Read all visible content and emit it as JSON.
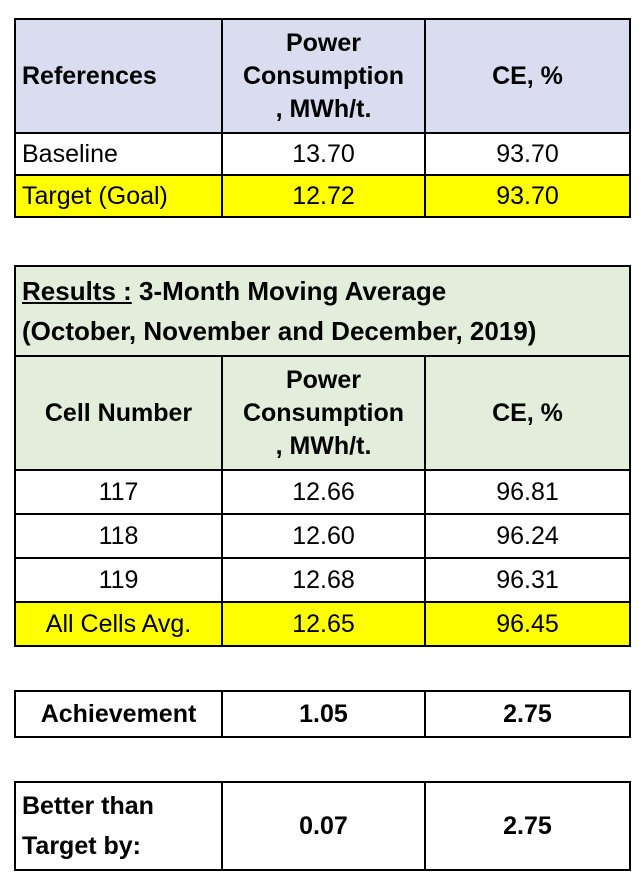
{
  "references_table": {
    "headers": [
      "References",
      "Power Consumption , MWh/t.",
      "CE, %"
    ],
    "header_power_lines": [
      "Power",
      "Consumption",
      ", MWh/t."
    ],
    "rows": [
      {
        "label": "Baseline",
        "power": "13.70",
        "ce": "93.70"
      },
      {
        "label": "Target (Goal)",
        "power": "12.72",
        "ce": "93.70"
      }
    ]
  },
  "results_table": {
    "title_prefix": "Results :",
    "title_main": " 3-Month Moving Average",
    "title_line2": "(October, November and December, 2019)",
    "headers": [
      "Cell Number",
      "CE, %"
    ],
    "header_power_lines": [
      "Power",
      "Consumption",
      ", MWh/t."
    ],
    "rows": [
      {
        "cell": "117",
        "power": "12.66",
        "ce": "96.81"
      },
      {
        "cell": "118",
        "power": "12.60",
        "ce": "96.24"
      },
      {
        "cell": "119",
        "power": "12.68",
        "ce": "96.31"
      }
    ],
    "average": {
      "cell": "All Cells Avg.",
      "power": "12.65",
      "ce": "96.45"
    }
  },
  "achievement": {
    "label": "Achievement",
    "power": "1.05",
    "ce": "2.75"
  },
  "better_than_target": {
    "label_line1": "Better than",
    "label_line2": "Target by:",
    "power": "0.07",
    "ce": "2.75"
  }
}
